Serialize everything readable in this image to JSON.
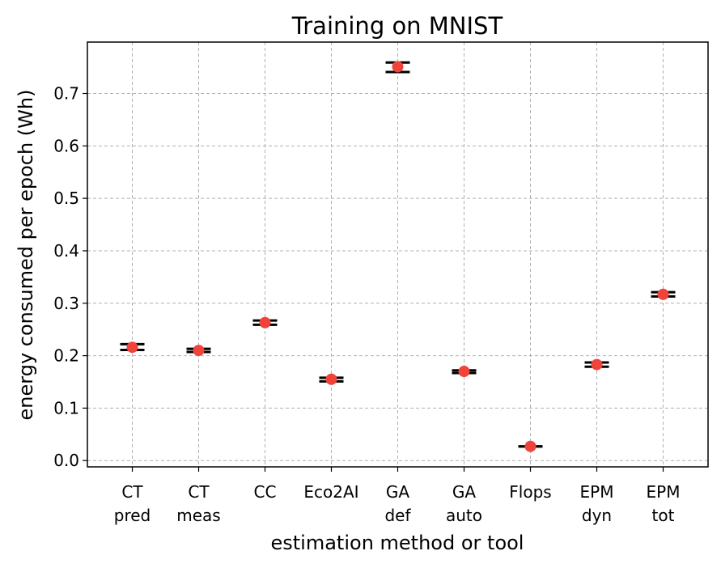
{
  "chart_data": {
    "type": "scatter",
    "title": "Training on MNIST",
    "xlabel": "estimation method or tool",
    "ylabel": "energy consumed per epoch (Wh)",
    "categories": [
      {
        "line1": "CT",
        "line2": "pred"
      },
      {
        "line1": "CT",
        "line2": "meas"
      },
      {
        "line1": "CC",
        "line2": ""
      },
      {
        "line1": "Eco2AI",
        "line2": ""
      },
      {
        "line1": "GA",
        "line2": "def"
      },
      {
        "line1": "GA",
        "line2": "auto"
      },
      {
        "line1": "Flops",
        "line2": ""
      },
      {
        "line1": "EPM",
        "line2": "dyn"
      },
      {
        "line1": "EPM",
        "line2": "tot"
      }
    ],
    "values": [
      0.216,
      0.21,
      0.263,
      0.155,
      0.751,
      0.17,
      0.027,
      0.183,
      0.317
    ],
    "bounds": [
      [
        0.211,
        0.222
      ],
      [
        0.207,
        0.213
      ],
      [
        0.259,
        0.267
      ],
      [
        0.151,
        0.158
      ],
      [
        0.741,
        0.759
      ],
      [
        0.167,
        0.172
      ],
      [
        0.027,
        0.027
      ],
      [
        0.179,
        0.187
      ],
      [
        0.313,
        0.321
      ]
    ],
    "yticks": [
      "0.0",
      "0.1",
      "0.2",
      "0.3",
      "0.4",
      "0.5",
      "0.6",
      "0.7"
    ],
    "ylim": [
      -0.012,
      0.798
    ],
    "grid": true,
    "marker_color": "#f0433a",
    "bound_color": "#000000"
  }
}
